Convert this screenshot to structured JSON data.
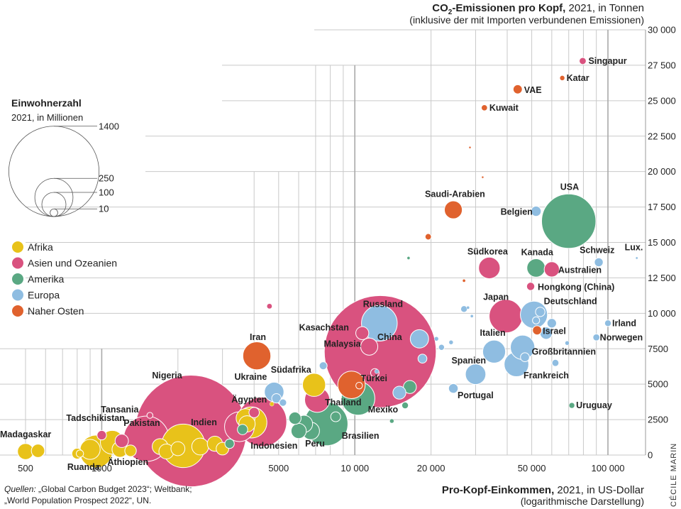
{
  "title": {
    "y_main_prefix": "CO",
    "y_main_sub": "2",
    "y_main_suffix": "-Emissionen pro Kopf,",
    "y_rest": " 2021, in Tonnen",
    "y_line2": "(inklusive der mit Importen verbundenen Emissionen)",
    "x_main": "Pro-Kopf-Einkommen,",
    "x_rest": " 2021, in US-Dollar",
    "x_line2": "(logarithmische Darstellung)"
  },
  "legend": {
    "size_title": "Einwohnerzahl",
    "size_sub": "2021, in Millionen",
    "sizes": [
      {
        "label": "1400",
        "value": 1400
      },
      {
        "label": "250",
        "value": 250
      },
      {
        "label": "100",
        "value": 100
      },
      {
        "label": "10",
        "value": 10
      }
    ],
    "regions": [
      {
        "key": "afrika",
        "label": "Afrika",
        "color": "#e8c21a"
      },
      {
        "key": "asien",
        "label": "Asien und Ozeanien",
        "color": "#d9527f"
      },
      {
        "key": "amerika",
        "label": "Amerika",
        "color": "#5aa883"
      },
      {
        "key": "europa",
        "label": "Europa",
        "color": "#8fbde1"
      },
      {
        "key": "nahost",
        "label": "Naher Osten",
        "color": "#e0622e"
      }
    ]
  },
  "source": {
    "label": "Quellen:",
    "line1": " „Global Carbon Budget 2023“; Weltbank;",
    "line2": "„World Population Prospect 2022“, UN."
  },
  "credit": "Cécile Marin",
  "chart_data": {
    "type": "scatter",
    "title": "CO2-Emissionen pro Kopf, 2021, in Tonnen (inklusive der mit Importen verbundenen Emissionen)",
    "xlabel": "Pro-Kopf-Einkommen, 2021, in US-Dollar (logarithmische Darstellung)",
    "ylabel": "CO2-Emissionen pro Kopf, 2021, in Tonnen",
    "x_scale": "log",
    "xlim": [
      450,
      130000
    ],
    "ylim": [
      0,
      30000
    ],
    "x_ticks": [
      {
        "v": 500,
        "label": "500"
      },
      {
        "v": 1000,
        "label": "1000"
      },
      {
        "v": 5000,
        "label": "5000"
      },
      {
        "v": 10000,
        "label": "10 000"
      },
      {
        "v": 20000,
        "label": "20 000"
      },
      {
        "v": 50000,
        "label": "50 000"
      },
      {
        "v": 100000,
        "label": "100 000"
      }
    ],
    "y_ticks": [
      {
        "v": 0,
        "label": "0"
      },
      {
        "v": 2500,
        "label": "2500"
      },
      {
        "v": 5000,
        "label": "5000"
      },
      {
        "v": 7500,
        "label": "7500"
      },
      {
        "v": 10000,
        "label": "10 000"
      },
      {
        "v": 12500,
        "label": "12 500"
      },
      {
        "v": 15000,
        "label": "15 000"
      },
      {
        "v": 17500,
        "label": "17 500"
      },
      {
        "v": 20000,
        "label": "20 000"
      },
      {
        "v": 22500,
        "label": "22 500"
      },
      {
        "v": 25000,
        "label": "25 000"
      },
      {
        "v": 27500,
        "label": "27 500"
      },
      {
        "v": 30000,
        "label": "30 000"
      }
    ],
    "points": [
      {
        "name": "China",
        "label": "China",
        "region": "asien",
        "x": 12600,
        "y": 7300,
        "pop": 1410
      },
      {
        "name": "Indien",
        "label": "Indien",
        "region": "asien",
        "x": 2250,
        "y": 1700,
        "pop": 1400
      },
      {
        "name": "USA",
        "label": "USA",
        "region": "amerika",
        "x": 70000,
        "y": 16500,
        "pop": 332
      },
      {
        "name": "Indonesien",
        "label": "Indonesien",
        "region": "asien",
        "x": 4300,
        "y": 2350,
        "pop": 274
      },
      {
        "name": "Pakistan",
        "label": "Pakistan",
        "region": "asien",
        "x": 1500,
        "y": 1150,
        "pop": 231
      },
      {
        "name": "Nigeria",
        "label": "Nigeria",
        "region": "afrika",
        "x": 2100,
        "y": 650,
        "pop": 213
      },
      {
        "name": "Brasilien",
        "label": "Brasilien",
        "region": "amerika",
        "x": 7700,
        "y": 2200,
        "pop": 214
      },
      {
        "name": "Russland",
        "label": "Russland",
        "region": "europa",
        "x": 12500,
        "y": 9300,
        "pop": 144
      },
      {
        "name": "Mexiko",
        "label": "Mexiko",
        "region": "amerika",
        "x": 10300,
        "y": 4000,
        "pop": 126
      },
      {
        "name": "Japan",
        "label": "Japan",
        "region": "asien",
        "x": 39500,
        "y": 9800,
        "pop": 125
      },
      {
        "name": "Äthiopien",
        "label": "Äthiopien",
        "region": "afrika",
        "x": 950,
        "y": 250,
        "pop": 120
      },
      {
        "name": "Ägypten",
        "label": "Ägypten",
        "region": "afrika",
        "x": 3900,
        "y": 2300,
        "pop": 109
      },
      {
        "name": "Türkei",
        "label": "Türkei",
        "region": "nahost",
        "x": 9700,
        "y": 4950,
        "pop": 85
      },
      {
        "name": "Iran",
        "label": "Iran",
        "region": "nahost",
        "x": 4100,
        "y": 7000,
        "pop": 88
      },
      {
        "name": "Deutschland",
        "label": "Deutschland",
        "region": "europa",
        "x": 51000,
        "y": 9900,
        "pop": 83
      },
      {
        "name": "Thailand",
        "label": "Thailand",
        "region": "asien",
        "x": 7100,
        "y": 3900,
        "pop": 71
      },
      {
        "name": "Großbritannien",
        "label": "Großbritannien",
        "region": "europa",
        "x": 46000,
        "y": 7600,
        "pop": 67
      },
      {
        "name": "Frankreich",
        "label": "Frankreich",
        "region": "europa",
        "x": 43500,
        "y": 6400,
        "pop": 68
      },
      {
        "name": "Italien",
        "label": "Italien",
        "region": "europa",
        "x": 35500,
        "y": 7300,
        "pop": 59
      },
      {
        "name": "Tansania",
        "label": "Tansania",
        "region": "afrika",
        "x": 1100,
        "y": 900,
        "pop": 63
      },
      {
        "name": "Südafrika",
        "label": "Südafrika",
        "region": "afrika",
        "x": 6900,
        "y": 4950,
        "pop": 60
      },
      {
        "name": "Südkorea",
        "label": "Südkorea",
        "region": "asien",
        "x": 34000,
        "y": 13200,
        "pop": 52
      },
      {
        "name": "Spanien",
        "label": "Spanien",
        "region": "europa",
        "x": 30000,
        "y": 5700,
        "pop": 47
      },
      {
        "name": "Kanada",
        "label": "Kanada",
        "region": "amerika",
        "x": 52000,
        "y": 13200,
        "pop": 38
      },
      {
        "name": "Ukraine",
        "label": "Ukraine",
        "region": "europa",
        "x": 4800,
        "y": 4450,
        "pop": 43
      },
      {
        "name": "Saudi-Arabien",
        "label": "Saudi-Arabien",
        "region": "nahost",
        "x": 24500,
        "y": 17300,
        "pop": 36
      },
      {
        "name": "Peru",
        "label": "Peru",
        "region": "amerika",
        "x": 6700,
        "y": 1700,
        "pop": 34
      },
      {
        "name": "Malaysia",
        "label": "Malaysia",
        "region": "asien",
        "x": 11400,
        "y": 7650,
        "pop": 33
      },
      {
        "name": "Australien",
        "label": "Australien",
        "region": "asien",
        "x": 60000,
        "y": 13100,
        "pop": 26
      },
      {
        "name": "Madagaskar",
        "label": "Madagaskar",
        "region": "afrika",
        "x": 500,
        "y": 250,
        "pop": 29
      },
      {
        "name": "Tadschikistan",
        "label": "Tadschikistan",
        "region": "asien",
        "x": 1000,
        "y": 1400,
        "pop": 10
      },
      {
        "name": "Kasachstan",
        "label": "Kasachstan",
        "region": "asien",
        "x": 10700,
        "y": 8600,
        "pop": 19
      },
      {
        "name": "Ruanda",
        "label": "Ruanda",
        "region": "afrika",
        "x": 800,
        "y": 100,
        "pop": 13
      },
      {
        "name": "Belgien",
        "label": "Belgien",
        "region": "europa",
        "x": 52000,
        "y": 17200,
        "pop": 11.6
      },
      {
        "name": "Portugal",
        "label": "Portugal",
        "region": "europa",
        "x": 24500,
        "y": 4700,
        "pop": 10.3
      },
      {
        "name": "VAE",
        "label": "VAE",
        "region": "nahost",
        "x": 44000,
        "y": 25800,
        "pop": 9.4
      },
      {
        "name": "Israel",
        "label": "Israel",
        "region": "nahost",
        "x": 52500,
        "y": 8800,
        "pop": 9.4
      },
      {
        "name": "Schweiz",
        "label": "Schweiz",
        "region": "europa",
        "x": 92000,
        "y": 13600,
        "pop": 8.7
      },
      {
        "name": "Hongkong (China)",
        "label": "Hongkong (China)",
        "region": "asien",
        "x": 49500,
        "y": 11900,
        "pop": 7.4
      },
      {
        "name": "Kuwait",
        "label": "Kuwait",
        "region": "nahost",
        "x": 32500,
        "y": 24500,
        "pop": 4.3
      },
      {
        "name": "Singapur",
        "label": "Singapur",
        "region": "asien",
        "x": 79500,
        "y": 27800,
        "pop": 5.5
      },
      {
        "name": "Norwegen",
        "label": "Norwegen",
        "region": "europa",
        "x": 90000,
        "y": 8300,
        "pop": 5.4
      },
      {
        "name": "Irland",
        "label": "Irland",
        "region": "europa",
        "x": 100000,
        "y": 9300,
        "pop": 5
      },
      {
        "name": "Katar",
        "label": "Katar",
        "region": "nahost",
        "x": 66000,
        "y": 26600,
        "pop": 2.7
      },
      {
        "name": "Uruguay",
        "label": "Uruguay",
        "region": "amerika",
        "x": 72000,
        "y": 3500,
        "pop": 3.5
      },
      {
        "name": "Luxemburg",
        "label": "Lux.",
        "region": "europa",
        "x": 130000,
        "y": 13900,
        "pop": 0.6
      }
    ],
    "unlabeled_points": [
      {
        "region": "afrika",
        "x": 560,
        "y": 300,
        "pop": 20
      },
      {
        "region": "afrika",
        "x": 820,
        "y": 100,
        "pop": 6
      },
      {
        "region": "afrika",
        "x": 900,
        "y": 400,
        "pop": 45
      },
      {
        "region": "afrika",
        "x": 1180,
        "y": 400,
        "pop": 28
      },
      {
        "region": "afrika",
        "x": 1300,
        "y": 300,
        "pop": 15
      },
      {
        "region": "afrika",
        "x": 1700,
        "y": 600,
        "pop": 28
      },
      {
        "region": "afrika",
        "x": 1800,
        "y": 250,
        "pop": 25
      },
      {
        "region": "afrika",
        "x": 2000,
        "y": 450,
        "pop": 22
      },
      {
        "region": "afrika",
        "x": 2450,
        "y": 600,
        "pop": 32
      },
      {
        "region": "afrika",
        "x": 2800,
        "y": 800,
        "pop": 26
      },
      {
        "region": "afrika",
        "x": 3000,
        "y": 450,
        "pop": 18
      },
      {
        "region": "afrika",
        "x": 3700,
        "y": 2600,
        "pop": 40
      },
      {
        "region": "afrika",
        "x": 3750,
        "y": 2200,
        "pop": 30
      },
      {
        "region": "afrika",
        "x": 4700,
        "y": 3600,
        "pop": 2
      },
      {
        "region": "asien",
        "x": 1550,
        "y": 2800,
        "pop": 4
      },
      {
        "region": "asien",
        "x": 3500,
        "y": 2000,
        "pop": 100
      },
      {
        "region": "asien",
        "x": 4000,
        "y": 3000,
        "pop": 12
      },
      {
        "region": "asien",
        "x": 12000,
        "y": 5800,
        "pop": 8
      },
      {
        "region": "asien",
        "x": 4600,
        "y": 10500,
        "pop": 3
      },
      {
        "region": "asien",
        "x": 1200,
        "y": 1000,
        "pop": 20
      },
      {
        "region": "amerika",
        "x": 3200,
        "y": 800,
        "pop": 10
      },
      {
        "region": "amerika",
        "x": 5800,
        "y": 2600,
        "pop": 17
      },
      {
        "region": "amerika",
        "x": 6300,
        "y": 2200,
        "pop": 33
      },
      {
        "region": "amerika",
        "x": 6000,
        "y": 1700,
        "pop": 26
      },
      {
        "region": "amerika",
        "x": 8400,
        "y": 2700,
        "pop": 11
      },
      {
        "region": "amerika",
        "x": 14000,
        "y": 2400,
        "pop": 2
      },
      {
        "region": "amerika",
        "x": 15800,
        "y": 3500,
        "pop": 5
      },
      {
        "region": "amerika",
        "x": 16500,
        "y": 4800,
        "pop": 19
      },
      {
        "region": "amerika",
        "x": 16300,
        "y": 13900,
        "pop": 1
      },
      {
        "region": "amerika",
        "x": 3600,
        "y": 1800,
        "pop": 12
      },
      {
        "region": "europa",
        "x": 5200,
        "y": 3700,
        "pop": 6
      },
      {
        "region": "europa",
        "x": 7500,
        "y": 6300,
        "pop": 7
      },
      {
        "region": "europa",
        "x": 15000,
        "y": 4400,
        "pop": 19
      },
      {
        "region": "europa",
        "x": 18000,
        "y": 8200,
        "pop": 38
      },
      {
        "region": "europa",
        "x": 18500,
        "y": 6800,
        "pop": 9
      },
      {
        "region": "europa",
        "x": 21000,
        "y": 8200,
        "pop": 2
      },
      {
        "region": "europa",
        "x": 22000,
        "y": 7600,
        "pop": 4
      },
      {
        "region": "europa",
        "x": 24000,
        "y": 7950,
        "pop": 2
      },
      {
        "region": "europa",
        "x": 27000,
        "y": 10300,
        "pop": 5
      },
      {
        "region": "europa",
        "x": 28000,
        "y": 10400,
        "pop": 1
      },
      {
        "region": "europa",
        "x": 29000,
        "y": 9800,
        "pop": 1
      },
      {
        "region": "europa",
        "x": 47000,
        "y": 6900,
        "pop": 9
      },
      {
        "region": "europa",
        "x": 52000,
        "y": 9500,
        "pop": 5.8
      },
      {
        "region": "europa",
        "x": 54000,
        "y": 10100,
        "pop": 10
      },
      {
        "region": "europa",
        "x": 57000,
        "y": 8600,
        "pop": 17
      },
      {
        "region": "europa",
        "x": 60000,
        "y": 9300,
        "pop": 10
      },
      {
        "region": "europa",
        "x": 62000,
        "y": 6500,
        "pop": 5.5
      },
      {
        "region": "europa",
        "x": 69000,
        "y": 7900,
        "pop": 2
      },
      {
        "region": "europa",
        "x": 4900,
        "y": 4000,
        "pop": 10
      },
      {
        "region": "europa",
        "x": 12200,
        "y": 5900,
        "pop": 2
      },
      {
        "region": "nahost",
        "x": 19500,
        "y": 15400,
        "pop": 4.5
      },
      {
        "region": "nahost",
        "x": 27000,
        "y": 12300,
        "pop": 1
      },
      {
        "region": "nahost",
        "x": 28500,
        "y": 21700,
        "pop": 0.5
      },
      {
        "region": "nahost",
        "x": 32000,
        "y": 19600,
        "pop": 0.5
      },
      {
        "region": "nahost",
        "x": 10400,
        "y": 4900,
        "pop": 5
      }
    ]
  }
}
